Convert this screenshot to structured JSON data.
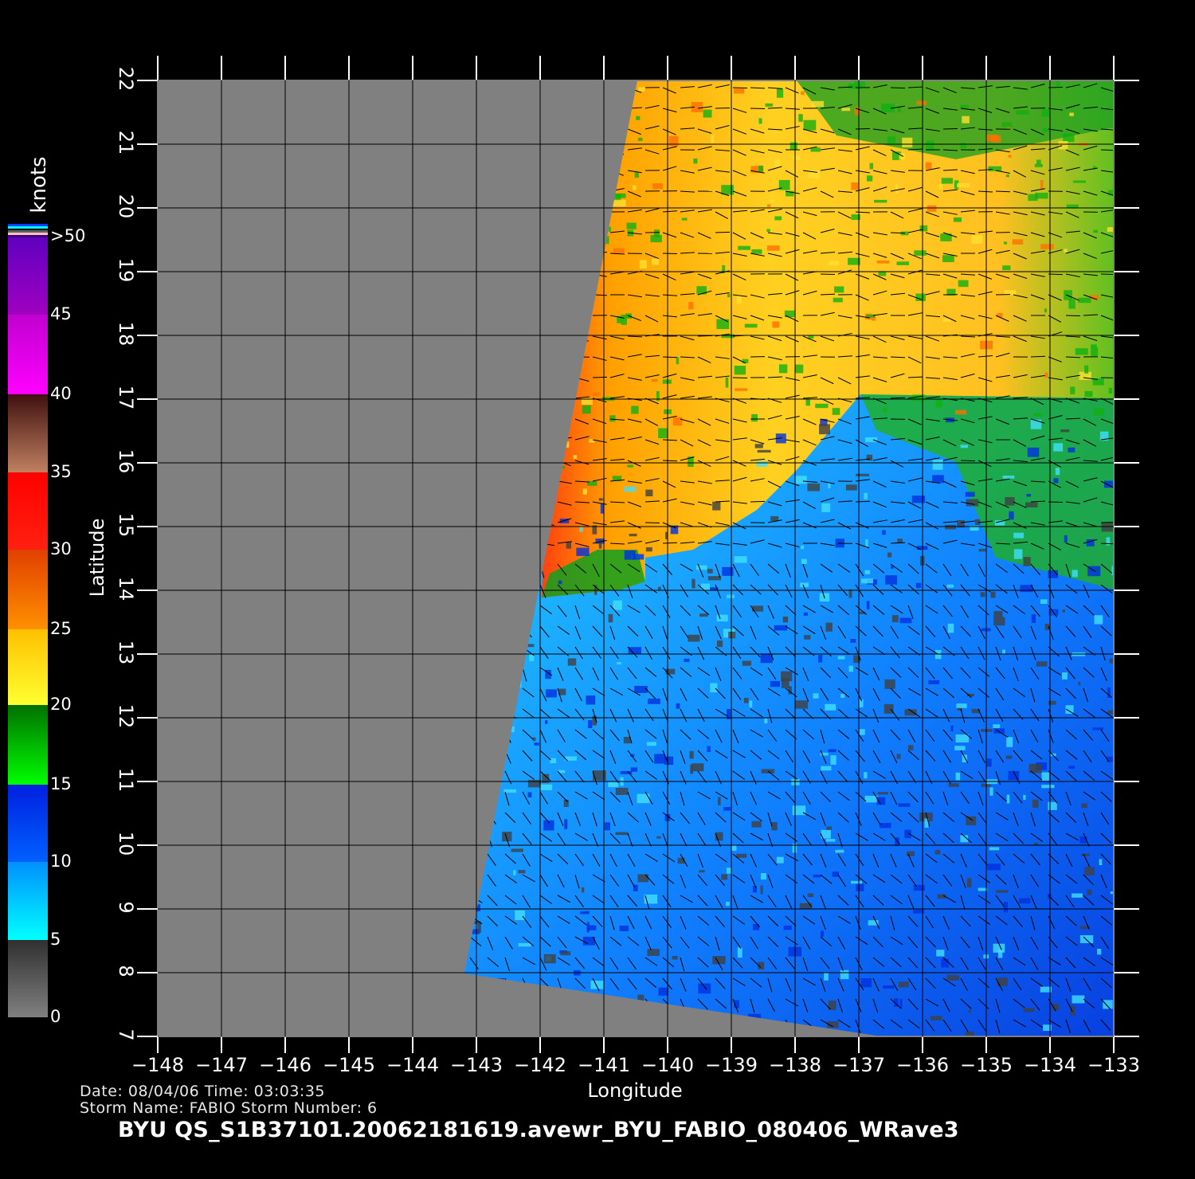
{
  "map": {
    "xlabel": "Longitude",
    "ylabel": "Latitude",
    "lon_range": [
      -148,
      -133
    ],
    "lat_range": [
      7,
      22
    ],
    "lon_ticks": [
      "−148",
      "−147",
      "−146",
      "−145",
      "−144",
      "−143",
      "−142",
      "−141",
      "−140",
      "−139",
      "−138",
      "−137",
      "−136",
      "−135",
      "−134",
      "−133"
    ],
    "lat_ticks": [
      "7",
      "8",
      "9",
      "10",
      "11",
      "12",
      "13",
      "14",
      "15",
      "16",
      "17",
      "18",
      "19",
      "20",
      "21",
      "22"
    ],
    "no_data_color": "#808080",
    "grid": true
  },
  "colorbar": {
    "unit": "knots",
    "labels": [
      "0",
      "5",
      "10",
      "15",
      "20",
      "25",
      "30",
      "35",
      "40",
      "45",
      ">50"
    ],
    "colors": {
      "0-5": [
        "#808080",
        "#303030"
      ],
      "5-10": [
        "#00ffff",
        "#0090ff"
      ],
      "10-15": [
        "#0060ff",
        "#0020e0"
      ],
      "15-20": [
        "#00ff00",
        "#007000"
      ],
      "20-25": [
        "#ffff30",
        "#ffc000"
      ],
      "25-30": [
        "#ff9000",
        "#e04000"
      ],
      "30-35": [
        "#ff2010",
        "#ff0000"
      ],
      "35-40": [
        "#c08060",
        "#401010"
      ],
      "40-45": [
        "#ff00ff",
        "#c000d0"
      ],
      "45-50": [
        "#a000c0",
        "#6000c0"
      ]
    }
  },
  "info": {
    "line1": "Date: 08/04/06   Time: 03:03:35",
    "line2": "Storm  Name: FABIO   Storm  Number: 6",
    "title": "BYU  QS_S1B37101.20062181619.avewr_BYU_FABIO_080406_WRave3"
  }
}
